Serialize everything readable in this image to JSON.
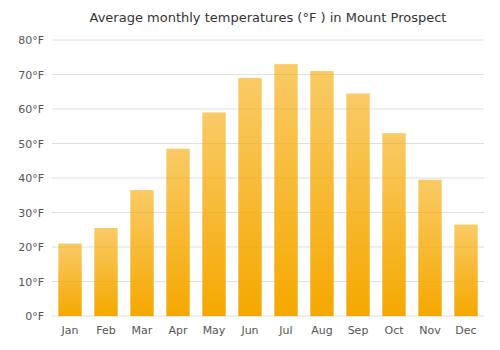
{
  "chart_data": {
    "type": "bar",
    "title": "Average monthly temperatures (°F ) in Mount Prospect",
    "categories": [
      "Jan",
      "Feb",
      "Mar",
      "Apr",
      "May",
      "Jun",
      "Jul",
      "Aug",
      "Sep",
      "Oct",
      "Nov",
      "Dec"
    ],
    "values": [
      21,
      25.5,
      36.5,
      48.5,
      59,
      69,
      73,
      71,
      64.5,
      53,
      39.5,
      26.5
    ],
    "color": "#F5A800",
    "ylim": [
      0,
      80
    ],
    "yticks": [
      {
        "value": 0,
        "label": "0°F"
      },
      {
        "value": 10,
        "label": "10°F"
      },
      {
        "value": 20,
        "label": "20°F"
      },
      {
        "value": 30,
        "label": "30°F"
      },
      {
        "value": 40,
        "label": "40°F"
      },
      {
        "value": 50,
        "label": "50°F"
      },
      {
        "value": 60,
        "label": "60°F"
      },
      {
        "value": 70,
        "label": "70°F"
      },
      {
        "value": 80,
        "label": "80°F"
      }
    ],
    "grid": true
  }
}
